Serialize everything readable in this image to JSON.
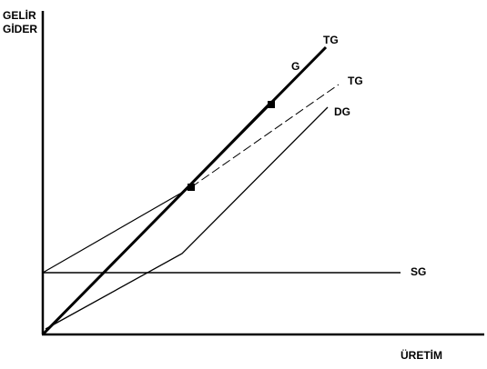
{
  "axes": {
    "y_label_line1": "GELİR",
    "y_label_line2": "GİDER",
    "x_label": "ÜRETİM"
  },
  "curves": {
    "tg_upper": "TG",
    "g": "G",
    "tg_lower": "TG",
    "dg": "DG",
    "sg": "SG"
  },
  "colors": {
    "ink": "#000000",
    "background": "#ffffff"
  }
}
